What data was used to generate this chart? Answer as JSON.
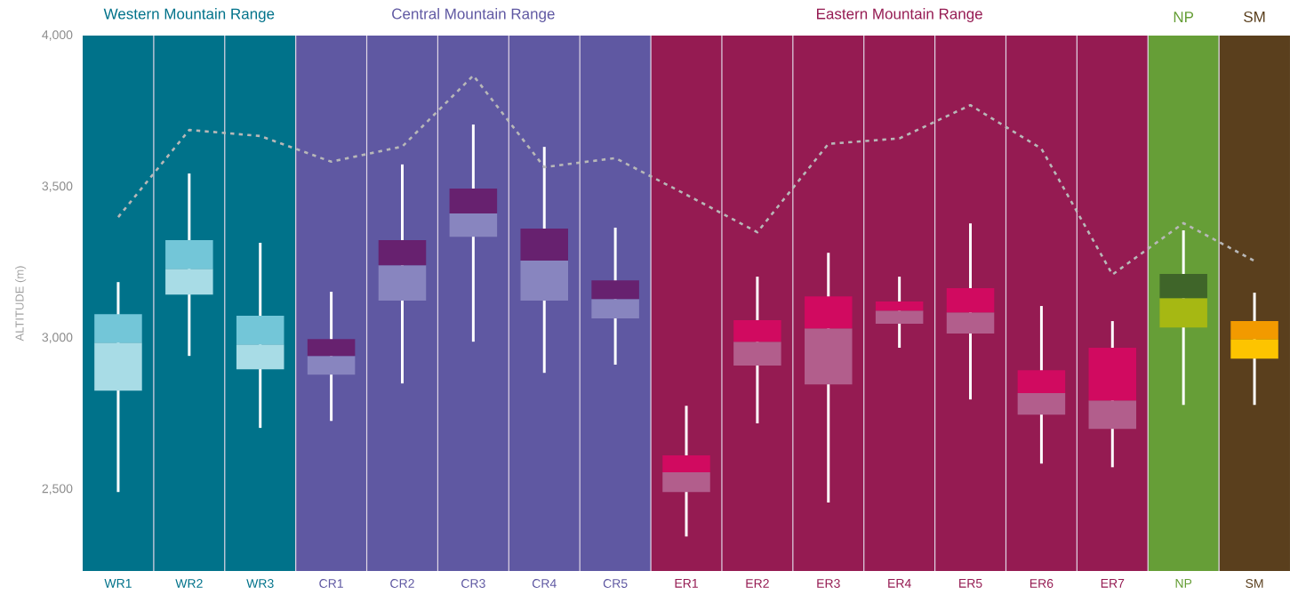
{
  "chart_data": {
    "type": "box",
    "categories": [
      "WR1",
      "WR2",
      "WR3",
      "CR1",
      "CR2",
      "CR3",
      "CR4",
      "CR5",
      "ER1",
      "ER2",
      "ER3",
      "ER4",
      "ER5",
      "ER6",
      "ER7",
      "NP",
      "SM"
    ],
    "grid": false,
    "ylabel": "ALTITUDE (m)",
    "ylim": [
      2230,
      4000
    ],
    "yticks": [
      {
        "value": 2500,
        "label": "2,500"
      },
      {
        "value": 3000,
        "label": "3,000"
      },
      {
        "value": 3500,
        "label": "3,500"
      },
      {
        "value": 4000,
        "label": "4,000"
      }
    ],
    "series": [
      {
        "color": "#73c6d8",
        "colors": [
          "#a8dce6",
          "#a8dce6",
          "#a8dce6",
          null,
          null,
          null,
          null,
          null,
          null,
          null,
          null,
          null,
          null,
          null,
          null,
          null,
          null
        ],
        "boxes": [
          {
            "low": 2491,
            "q1": 2826,
            "median": 2985,
            "q3": 3079,
            "high": 3185
          },
          {
            "low": 2941,
            "q1": 3144,
            "median": 3229,
            "q3": 3324,
            "high": 3544
          },
          {
            "low": 2703,
            "q1": 2897,
            "median": 2979,
            "q3": 3074,
            "high": 3315
          },
          null,
          null,
          null,
          null,
          null,
          null,
          null,
          null,
          null,
          null,
          null,
          null,
          null,
          null
        ]
      },
      {
        "color": "#67216f",
        "colors": [
          null,
          null,
          null,
          "#8885bf",
          "#8885bf",
          "#8885bf",
          "#8885bf",
          "#8885bf",
          null,
          null,
          null,
          null,
          null,
          null,
          null,
          null,
          null
        ],
        "boxes": [
          null,
          null,
          null,
          {
            "low": 2726,
            "q1": 2879,
            "median": 2941,
            "q3": 2997,
            "high": 3153
          },
          {
            "low": 2850,
            "q1": 3124,
            "median": 3241,
            "q3": 3324,
            "high": 3574
          },
          {
            "low": 2988,
            "q1": 3335,
            "median": 3412,
            "q3": 3494,
            "high": 3706
          },
          {
            "low": 2885,
            "q1": 3124,
            "median": 3256,
            "q3": 3362,
            "high": 3632
          },
          {
            "low": 2912,
            "q1": 3065,
            "median": 3129,
            "q3": 3191,
            "high": 3365
          },
          null,
          null,
          null,
          null,
          null,
          null,
          null,
          null,
          null
        ]
      },
      {
        "color": "#d10a60",
        "colors": [
          null,
          null,
          null,
          null,
          null,
          null,
          null,
          null,
          "#b25e8c",
          "#b25e8c",
          "#b25e8c",
          "#b25e8c",
          "#b25e8c",
          "#b25e8c",
          "#b25e8c",
          null,
          null
        ],
        "boxes": [
          null,
          null,
          null,
          null,
          null,
          null,
          null,
          null,
          {
            "low": 2344,
            "q1": 2491,
            "median": 2556,
            "q3": 2612,
            "high": 2776
          },
          {
            "low": 2718,
            "q1": 2909,
            "median": 2988,
            "q3": 3059,
            "high": 3203
          },
          {
            "low": 2456,
            "q1": 2847,
            "median": 3032,
            "q3": 3138,
            "high": 3282
          },
          {
            "low": 2968,
            "q1": 3047,
            "median": 3091,
            "q3": 3121,
            "high": 3203
          },
          {
            "low": 2797,
            "q1": 3015,
            "median": 3085,
            "q3": 3165,
            "high": 3379
          },
          {
            "low": 2585,
            "q1": 2747,
            "median": 2818,
            "q3": 2894,
            "high": 3106
          },
          {
            "low": 2573,
            "q1": 2700,
            "median": 2794,
            "q3": 2968,
            "high": 3056
          },
          null,
          null
        ]
      },
      {
        "color": "#3f6529",
        "colors": [
          null,
          null,
          null,
          null,
          null,
          null,
          null,
          null,
          null,
          null,
          null,
          null,
          null,
          null,
          null,
          "#a6b813",
          null
        ],
        "boxes": [
          null,
          null,
          null,
          null,
          null,
          null,
          null,
          null,
          null,
          null,
          null,
          null,
          null,
          null,
          null,
          {
            "low": 2779,
            "q1": 3035,
            "median": 3132,
            "q3": 3212,
            "high": 3356
          },
          null
        ]
      },
      {
        "color": "#f29a00",
        "colors": [
          null,
          null,
          null,
          null,
          null,
          null,
          null,
          null,
          null,
          null,
          null,
          null,
          null,
          null,
          null,
          null,
          "#fdc400"
        ],
        "boxes": [
          null,
          null,
          null,
          null,
          null,
          null,
          null,
          null,
          null,
          null,
          null,
          null,
          null,
          null,
          null,
          null,
          {
            "low": 2779,
            "q1": 2932,
            "median": 2997,
            "q3": 3056,
            "high": 3150
          }
        ]
      },
      {
        "type": "line",
        "color": "#b8b8b8",
        "line_style": "dashed",
        "values": [
          3400,
          3688,
          3668,
          3583,
          3633,
          3868,
          3565,
          3595,
          3474,
          3350,
          3642,
          3660,
          3770,
          3626,
          3210,
          3380,
          3255
        ]
      }
    ],
    "bands": [
      {
        "axis": "x",
        "from": "WR1",
        "to": "WR3",
        "label": "Western Mountain Range",
        "color": "#00728a"
      },
      {
        "axis": "x",
        "from": "CR1",
        "to": "CR5",
        "label": "Central Mountain Range",
        "color": "#5f58a2"
      },
      {
        "axis": "x",
        "from": "ER1",
        "to": "ER7",
        "label": "Eastern Mountain Range",
        "color": "#951b52"
      },
      {
        "axis": "x",
        "from": "NP",
        "to": "NP",
        "label": "NP",
        "color": "#669e37"
      },
      {
        "axis": "x",
        "from": "SM",
        "to": "SM",
        "label": "SM",
        "color": "#5a3f1d"
      }
    ]
  }
}
